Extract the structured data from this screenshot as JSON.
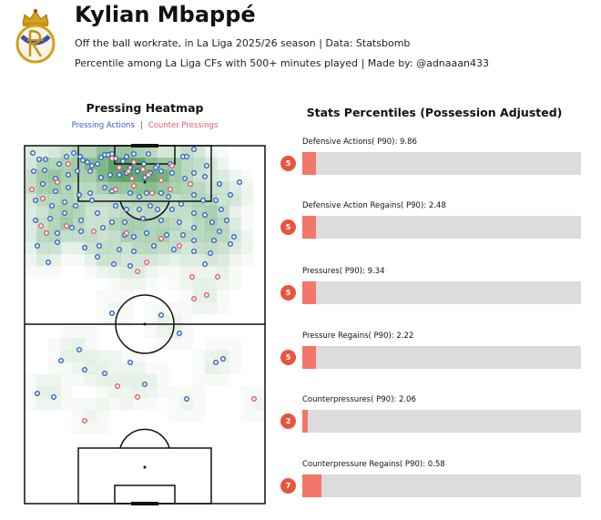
{
  "header": {
    "player_name": "Kylian Mbappé",
    "subtitle_line1": "Off the ball workrate, in La Liga 2025/26 season | Data: Statsbomb",
    "subtitle_line2": "Percentile among La Liga CFs with 500+ minutes played | Made by: @adnaaan433"
  },
  "heatmap": {
    "title": "Pressing Heatmap",
    "legend_actions": "Pressing Actions",
    "legend_separator": "|",
    "legend_counter": "Counter Pressings",
    "colors": {
      "actions": "#2f5fc0",
      "counter": "#e05a6a",
      "heat": "#2e8b3e"
    }
  },
  "stats": {
    "title": "Stats Percentiles (Possession Adjusted)",
    "items": [
      {
        "label": "Defensive Actions( P90): 9.86",
        "percentile": "5"
      },
      {
        "label": "Defensive Action Regains( P90): 2.48",
        "percentile": "5"
      },
      {
        "label": "Pressures( P90): 9.34",
        "percentile": "5"
      },
      {
        "label": "Pressure Regains( P90): 2.22",
        "percentile": "5"
      },
      {
        "label": "Counterpressures( P90): 2.06",
        "percentile": "2"
      },
      {
        "label": "Counterpressure Regains( P90): 0.58",
        "percentile": "7"
      }
    ],
    "colors": {
      "fill": "#f2766a",
      "track": "#dcdcdf",
      "badge": "#e8553f"
    }
  },
  "chart_data": [
    {
      "type": "heatmap",
      "title": "Pressing Heatmap",
      "series": [
        {
          "name": "Pressing Actions",
          "points": [
            [
              9,
              8
            ],
            [
              16,
              15
            ],
            [
              23,
              15
            ],
            [
              38,
              20
            ],
            [
              46,
              12
            ],
            [
              54,
              8
            ],
            [
              61,
              12
            ],
            [
              64,
              16
            ],
            [
              69,
              18
            ],
            [
              74,
              22
            ],
            [
              80,
              20
            ],
            [
              84,
              13
            ],
            [
              88,
              10
            ],
            [
              92,
              10
            ],
            [
              96,
              9
            ],
            [
              100,
              14
            ],
            [
              108,
              17
            ],
            [
              112,
              12
            ],
            [
              120,
              9
            ],
            [
              131,
              20
            ],
            [
              136,
              9
            ],
            [
              146,
              22
            ],
            [
              160,
              20
            ],
            [
              174,
              12
            ],
            [
              178,
              12
            ],
            [
              186,
              4
            ],
            [
              200,
              22
            ],
            [
              10,
              28
            ],
            [
              22,
              27
            ],
            [
              34,
              36
            ],
            [
              48,
              32
            ],
            [
              58,
              28
            ],
            [
              72,
              28
            ],
            [
              84,
              35
            ],
            [
              94,
              32
            ],
            [
              104,
              32
            ],
            [
              112,
              30
            ],
            [
              116,
              24
            ],
            [
              124,
              28
            ],
            [
              132,
              35
            ],
            [
              138,
              30
            ],
            [
              144,
              24
            ],
            [
              150,
              28
            ],
            [
              162,
              30
            ],
            [
              176,
              36
            ],
            [
              186,
              30
            ],
            [
              198,
              34
            ],
            [
              214,
              42
            ],
            [
              236,
              40
            ],
            [
              20,
              42
            ],
            [
              34,
              50
            ],
            [
              48,
              46
            ],
            [
              60,
              54
            ],
            [
              72,
              52
            ],
            [
              88,
              46
            ],
            [
              96,
              50
            ],
            [
              116,
              52
            ],
            [
              126,
              56
            ],
            [
              134,
              52
            ],
            [
              150,
              52
            ],
            [
              158,
              56
            ],
            [
              186,
              54
            ],
            [
              196,
              60
            ],
            [
              210,
              60
            ],
            [
              226,
              54
            ],
            [
              12,
              60
            ],
            [
              30,
              66
            ],
            [
              44,
              62
            ],
            [
              56,
              66
            ],
            [
              74,
              60
            ],
            [
              100,
              66
            ],
            [
              112,
              70
            ],
            [
              126,
              70
            ],
            [
              138,
              66
            ],
            [
              146,
              70
            ],
            [
              162,
              70
            ],
            [
              172,
              64
            ],
            [
              186,
              74
            ],
            [
              198,
              76
            ],
            [
              216,
              70
            ],
            [
              12,
              82
            ],
            [
              28,
              80
            ],
            [
              44,
              74
            ],
            [
              62,
              82
            ],
            [
              80,
              74
            ],
            [
              96,
              84
            ],
            [
              110,
              84
            ],
            [
              130,
              80
            ],
            [
              150,
              82
            ],
            [
              170,
              84
            ],
            [
              186,
              90
            ],
            [
              206,
              84
            ],
            [
              222,
              82
            ],
            [
              214,
              94
            ],
            [
              36,
              96
            ],
            [
              52,
              90
            ],
            [
              62,
              94
            ],
            [
              86,
              90
            ],
            [
              110,
              98
            ],
            [
              120,
              100
            ],
            [
              134,
              96
            ],
            [
              156,
              98
            ],
            [
              174,
              98
            ],
            [
              186,
              104
            ],
            [
              208,
              104
            ],
            [
              230,
              100
            ],
            [
              14,
              110
            ],
            [
              36,
              106
            ],
            [
              66,
              112
            ],
            [
              82,
              110
            ],
            [
              104,
              114
            ],
            [
              120,
              116
            ],
            [
              142,
              110
            ],
            [
              164,
              114
            ],
            [
              186,
              116
            ],
            [
              204,
              118
            ],
            [
              226,
              108
            ],
            [
              26,
              128
            ],
            [
              80,
              122
            ],
            [
              98,
              130
            ],
            [
              116,
              132
            ],
            [
              198,
              130
            ],
            [
              96,
              184
            ],
            [
              150,
              186
            ],
            [
              170,
              206
            ],
            [
              40,
              236
            ],
            [
              60,
              224
            ],
            [
              66,
              246
            ],
            [
              88,
              250
            ],
            [
              116,
              238
            ],
            [
              132,
              262
            ],
            [
              178,
              278
            ],
            [
              210,
              238
            ],
            [
              218,
              234
            ],
            [
              14,
              272
            ],
            [
              32,
              276
            ]
          ]
        },
        {
          "name": "Counter Pressings",
          "points": [
            [
              48,
              20
            ],
            [
              36,
              40
            ],
            [
              96,
              14
            ],
            [
              104,
              24
            ],
            [
              114,
              28
            ],
            [
              118,
              36
            ],
            [
              120,
              18
            ],
            [
              130,
              26
            ],
            [
              136,
              32
            ],
            [
              150,
              38
            ],
            [
              162,
              22
            ],
            [
              182,
              42
            ],
            [
              8,
              48
            ],
            [
              20,
              58
            ],
            [
              100,
              48
            ],
            [
              120,
              44
            ],
            [
              140,
              52
            ],
            [
              160,
              48
            ],
            [
              18,
              88
            ],
            [
              24,
              96
            ],
            [
              46,
              88
            ],
            [
              76,
              94
            ],
            [
              112,
              96
            ],
            [
              150,
              102
            ],
            [
              170,
              110
            ],
            [
              134,
              128
            ],
            [
              124,
              138
            ],
            [
              184,
              144
            ],
            [
              212,
              144
            ],
            [
              186,
              168
            ],
            [
              200,
              164
            ],
            [
              102,
              264
            ],
            [
              124,
              276
            ],
            [
              66,
              302
            ],
            [
              252,
              278
            ]
          ]
        }
      ]
    },
    {
      "type": "bar",
      "title": "Stats Percentiles (Possession Adjusted)",
      "categories": [
        "Defensive Actions( P90): 9.86",
        "Defensive Action Regains( P90): 2.48",
        "Pressures( P90): 9.34",
        "Pressure Regains( P90): 2.22",
        "Counterpressures( P90): 2.06",
        "Counterpressure Regains( P90): 0.58"
      ],
      "values": [
        5,
        5,
        5,
        5,
        2,
        7
      ],
      "ylim": [
        0,
        100
      ]
    }
  ]
}
